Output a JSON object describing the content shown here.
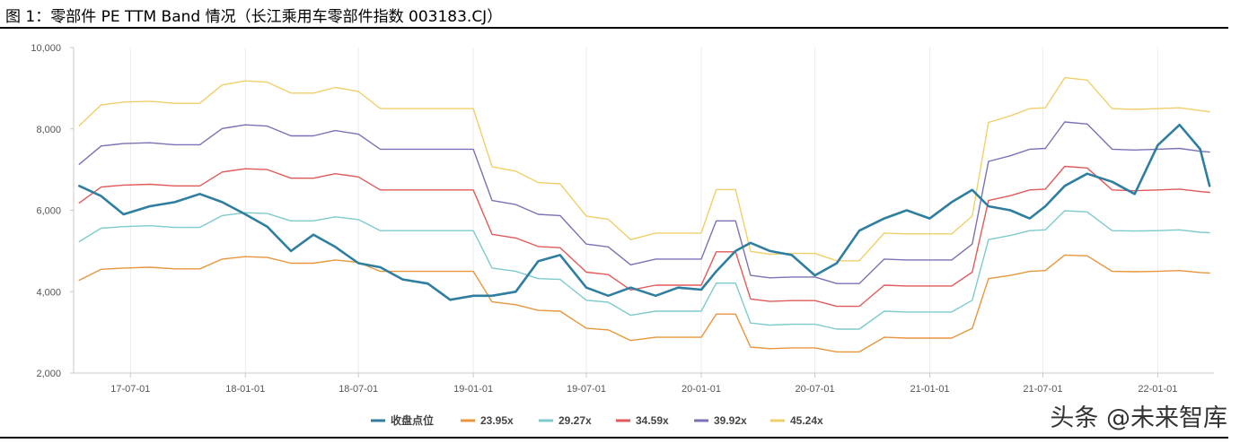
{
  "figure": {
    "title": "图  1：零部件 PE TTM Band 情况（长江乘用车零部件指数 003183.CJ）",
    "watermark": "头条 @未来智库"
  },
  "chart_data": {
    "type": "line",
    "ylim": [
      2000,
      10000
    ],
    "yticks": [
      "2,000",
      "4,000",
      "6,000",
      "8,000",
      "10,000"
    ],
    "ytick_values": [
      2000,
      4000,
      6000,
      8000,
      10000
    ],
    "xlim": [
      "2017-04-01",
      "2022-04-01"
    ],
    "xticks": [
      "17-07-01",
      "18-01-01",
      "18-07-01",
      "19-01-01",
      "19-07-01",
      "20-01-01",
      "20-07-01",
      "21-01-01",
      "21-07-01",
      "22-01-01"
    ],
    "xtick_dates": [
      "2017-07-01",
      "2018-01-01",
      "2018-07-01",
      "2019-01-01",
      "2019-07-01",
      "2020-01-01",
      "2020-07-01",
      "2021-01-01",
      "2021-07-01",
      "2022-01-01"
    ],
    "grid": "vertical only",
    "legend_position": "bottom",
    "x": [
      "2017-04-10",
      "2017-05-15",
      "2017-06-20",
      "2017-08-01",
      "2017-09-10",
      "2017-10-20",
      "2017-11-25",
      "2018-01-01",
      "2018-02-05",
      "2018-03-15",
      "2018-04-20",
      "2018-05-25",
      "2018-07-01",
      "2018-08-05",
      "2018-09-10",
      "2018-10-20",
      "2018-11-25",
      "2019-01-01",
      "2019-01-31",
      "2019-03-10",
      "2019-04-15",
      "2019-05-20",
      "2019-07-01",
      "2019-08-05",
      "2019-09-10",
      "2019-10-20",
      "2019-11-25",
      "2020-01-01",
      "2020-01-25",
      "2020-02-25",
      "2020-03-20",
      "2020-04-20",
      "2020-05-25",
      "2020-07-01",
      "2020-08-05",
      "2020-09-10",
      "2020-10-20",
      "2020-11-25",
      "2021-01-01",
      "2021-02-05",
      "2021-03-10",
      "2021-04-05",
      "2021-05-10",
      "2021-06-10",
      "2021-07-05",
      "2021-08-05",
      "2021-09-10",
      "2021-10-20",
      "2021-11-25",
      "2022-01-01",
      "2022-02-05",
      "2022-03-10",
      "2022-03-25"
    ],
    "series": [
      {
        "name": "收盘点位",
        "color": "#2f7ea0",
        "width": 2.6,
        "values": [
          6600,
          6350,
          5900,
          6100,
          6200,
          6400,
          6200,
          5900,
          5600,
          5000,
          5400,
          5100,
          4700,
          4600,
          4300,
          4200,
          3800,
          3900,
          3900,
          4000,
          4750,
          4900,
          4100,
          3900,
          4100,
          3900,
          4100,
          4050,
          4500,
          5000,
          5200,
          5000,
          4900,
          4400,
          4700,
          5500,
          5800,
          6000,
          5800,
          6200,
          6500,
          6100,
          6000,
          5800,
          6100,
          6600,
          6900,
          6700,
          6400,
          7600,
          8100,
          7500,
          6600
        ]
      },
      {
        "name": "23.95x",
        "color": "#e8963c",
        "width": 1.4,
        "values": [
          4280,
          4550,
          4580,
          4600,
          4560,
          4560,
          4800,
          4860,
          4840,
          4700,
          4700,
          4780,
          4720,
          4500,
          4500,
          4500,
          4500,
          4500,
          3750,
          3680,
          3540,
          3520,
          3100,
          3060,
          2800,
          2880,
          2880,
          2880,
          3450,
          3450,
          2640,
          2600,
          2620,
          2620,
          2520,
          2520,
          2880,
          2860,
          2860,
          2860,
          3100,
          4320,
          4400,
          4500,
          4520,
          4900,
          4880,
          4500,
          4490,
          4500,
          4520,
          4470,
          4460
        ]
      },
      {
        "name": "29.27x",
        "color": "#7fcbcb",
        "width": 1.4,
        "values": [
          5230,
          5560,
          5600,
          5620,
          5580,
          5580,
          5870,
          5940,
          5920,
          5740,
          5740,
          5840,
          5770,
          5500,
          5500,
          5500,
          5500,
          5500,
          4580,
          4500,
          4320,
          4300,
          3790,
          3740,
          3420,
          3520,
          3520,
          3520,
          4210,
          4210,
          3230,
          3180,
          3200,
          3200,
          3080,
          3080,
          3520,
          3500,
          3500,
          3500,
          3790,
          5280,
          5380,
          5500,
          5520,
          5990,
          5960,
          5500,
          5490,
          5500,
          5520,
          5460,
          5450
        ]
      },
      {
        "name": "34.59x",
        "color": "#e05a5a",
        "width": 1.4,
        "values": [
          6180,
          6570,
          6620,
          6640,
          6600,
          6600,
          6940,
          7020,
          7000,
          6790,
          6790,
          6900,
          6820,
          6500,
          6500,
          6500,
          6500,
          6500,
          5410,
          5320,
          5110,
          5080,
          4480,
          4420,
          4040,
          4160,
          4160,
          4160,
          4980,
          4980,
          3820,
          3760,
          3780,
          3780,
          3640,
          3640,
          4160,
          4140,
          4140,
          4140,
          4480,
          6240,
          6360,
          6500,
          6520,
          7080,
          7040,
          6500,
          6480,
          6500,
          6520,
          6460,
          6440
        ]
      },
      {
        "name": "39.92x",
        "color": "#7a72b5",
        "width": 1.4,
        "values": [
          7130,
          7580,
          7640,
          7660,
          7610,
          7610,
          8010,
          8100,
          8070,
          7830,
          7830,
          7960,
          7870,
          7500,
          7500,
          7500,
          7500,
          7500,
          6240,
          6140,
          5900,
          5870,
          5170,
          5100,
          4660,
          4800,
          4800,
          4800,
          5740,
          5740,
          4400,
          4340,
          4360,
          4360,
          4200,
          4200,
          4800,
          4780,
          4780,
          4780,
          5170,
          7200,
          7340,
          7500,
          7520,
          8170,
          8120,
          7500,
          7480,
          7500,
          7520,
          7450,
          7430
        ]
      },
      {
        "name": "45.24x",
        "color": "#f0cf6b",
        "width": 1.4,
        "values": [
          8080,
          8590,
          8660,
          8680,
          8630,
          8630,
          9080,
          9180,
          9150,
          8880,
          8880,
          9020,
          8920,
          8500,
          8500,
          8500,
          8500,
          8500,
          7070,
          6960,
          6680,
          6650,
          5860,
          5780,
          5280,
          5440,
          5440,
          5440,
          6510,
          6510,
          4990,
          4920,
          4940,
          4940,
          4760,
          4760,
          5440,
          5420,
          5420,
          5420,
          5860,
          8160,
          8320,
          8500,
          8520,
          9260,
          9200,
          8500,
          8480,
          8500,
          8520,
          8450,
          8420
        ]
      }
    ]
  }
}
